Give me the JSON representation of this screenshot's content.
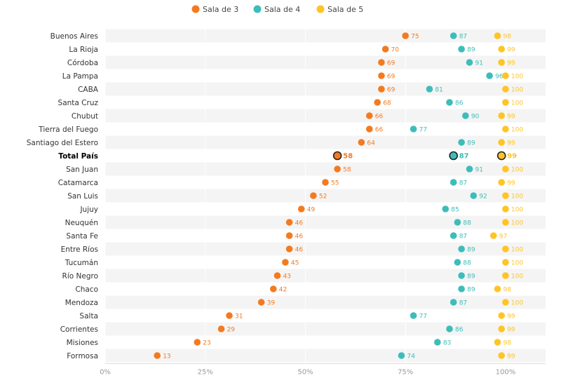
{
  "chart_data": {
    "type": "scatter",
    "legend_position": "top-center",
    "grid": true,
    "x_range": [
      0,
      110
    ],
    "x_ticks": [
      {
        "value": 0,
        "label": "0%"
      },
      {
        "value": 25,
        "label": "25%"
      },
      {
        "value": 50,
        "label": "50%"
      },
      {
        "value": 75,
        "label": "75%"
      },
      {
        "value": 100,
        "label": "100%"
      }
    ],
    "highlight_category": "Total País",
    "categories": [
      "Buenos Aires",
      "La Rioja",
      "Córdoba",
      "La Pampa",
      "CABA",
      "Santa Cruz",
      "Chubut",
      "Tierra del Fuego",
      "Santiago del Estero",
      "Total País",
      "San Juan",
      "Catamarca",
      "San Luis",
      "Jujuy",
      "Neuquén",
      "Santa Fe",
      "Entre Ríos",
      "Tucumán",
      "Río Negro",
      "Chaco",
      "Mendoza",
      "Salta",
      "Corrientes",
      "Misiones",
      "Formosa"
    ],
    "series": [
      {
        "name": "Sala de 3",
        "color": "#F47A1F",
        "values": [
          75,
          70,
          69,
          69,
          69,
          68,
          66,
          66,
          64,
          58,
          58,
          55,
          52,
          49,
          46,
          46,
          46,
          45,
          43,
          42,
          39,
          31,
          29,
          23,
          13
        ]
      },
      {
        "name": "Sala de 4",
        "color": "#3DBDBA",
        "values": [
          87,
          89,
          91,
          96,
          81,
          86,
          90,
          77,
          89,
          87,
          91,
          87,
          92,
          85,
          88,
          87,
          89,
          88,
          89,
          89,
          87,
          77,
          86,
          83,
          74
        ]
      },
      {
        "name": "Sala de 5",
        "color": "#FFC425",
        "values": [
          98,
          99,
          99,
          100,
          100,
          100,
          99,
          100,
          99,
          99,
          100,
          99,
          100,
          100,
          100,
          97,
          100,
          100,
          100,
          98,
          100,
          99,
          99,
          98,
          99
        ]
      }
    ]
  }
}
